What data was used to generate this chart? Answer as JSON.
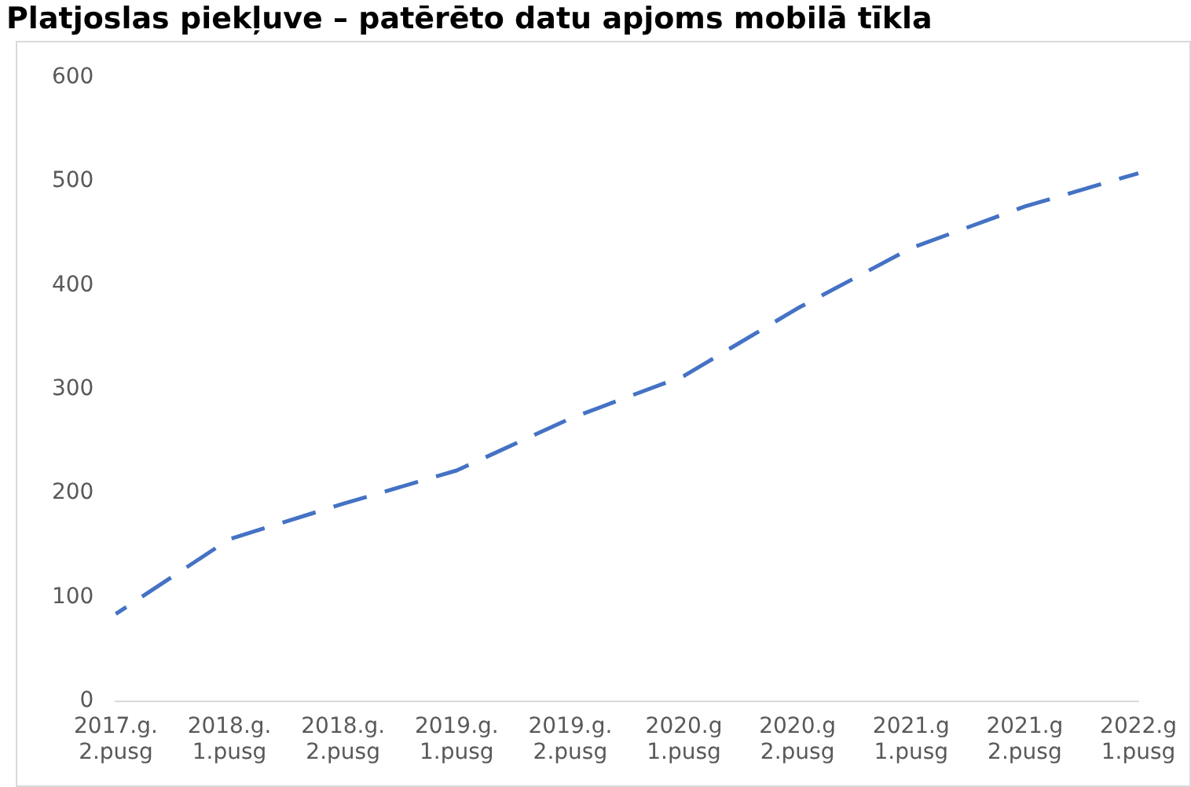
{
  "chart_data": {
    "type": "line",
    "title": "Platjoslas piekļuve – patērēto datu apjoms mobilā tīkla",
    "categories": [
      "2017.g. 2.pusg",
      "2018.g. 1.pusg",
      "2018.g. 2.pusg",
      "2019.g. 1.pusg",
      "2019.g. 2.pusg",
      "2020.g 1.pusg",
      "2020.g 2.pusg",
      "2021.g 1.pusg",
      "2021.g 2.pusg",
      "2022.g 1.pusg"
    ],
    "series": [
      {
        "color": "#4472c4",
        "values": [
          84,
          156,
          190,
          222,
          272,
          313,
          378,
          436,
          476,
          508
        ]
      }
    ],
    "ylim": [
      0,
      600
    ],
    "yticks": [
      0,
      100,
      200,
      300,
      400,
      500,
      600
    ],
    "grid": false,
    "legend": false,
    "marker": "none",
    "line_style": "dashed"
  }
}
